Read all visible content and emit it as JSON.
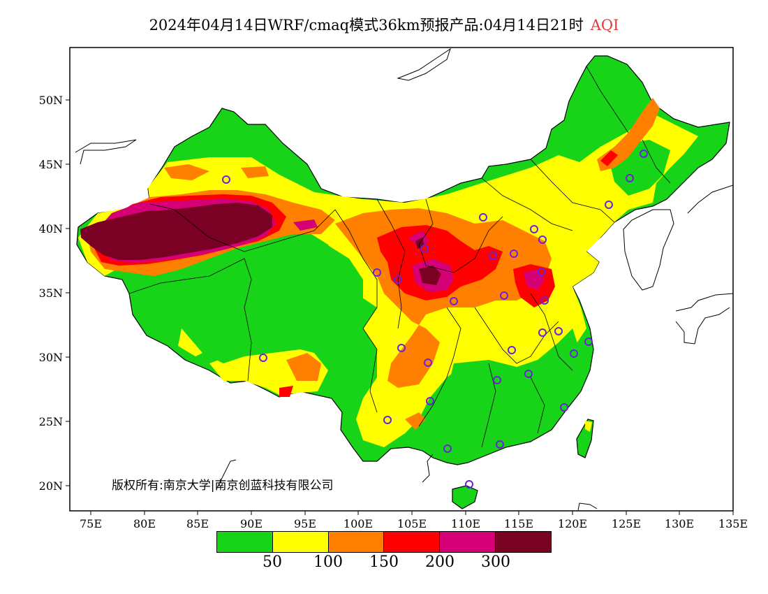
{
  "title": {
    "main": "2024年04月14日WRF/cmaq模式36km预报产品:04月14日21时",
    "variable": "AQI",
    "variable_color": "#e03c3c"
  },
  "axes": {
    "x_ticks": [
      "75E",
      "80E",
      "85E",
      "90E",
      "95E",
      "100E",
      "105E",
      "110E",
      "115E",
      "120E",
      "125E",
      "130E",
      "135E"
    ],
    "y_ticks": [
      "50N",
      "45N",
      "40N",
      "35N",
      "30N",
      "25N",
      "20N"
    ]
  },
  "legend": {
    "colors": [
      "#18d418",
      "#ffff00",
      "#ff8000",
      "#ff0000",
      "#d60076",
      "#7a0024"
    ],
    "thresholds": [
      "50",
      "100",
      "150",
      "200",
      "300"
    ]
  },
  "copyright": "版权所有:南京大学|南京创蓝科技有限公司",
  "colors": {
    "good": "#18d418",
    "moderate": "#ffff00",
    "usg": "#ff8000",
    "unhealthy": "#ff0000",
    "very_unhealthy": "#d60076",
    "hazardous": "#7a0024",
    "station_ring": "#6a22d9"
  }
}
